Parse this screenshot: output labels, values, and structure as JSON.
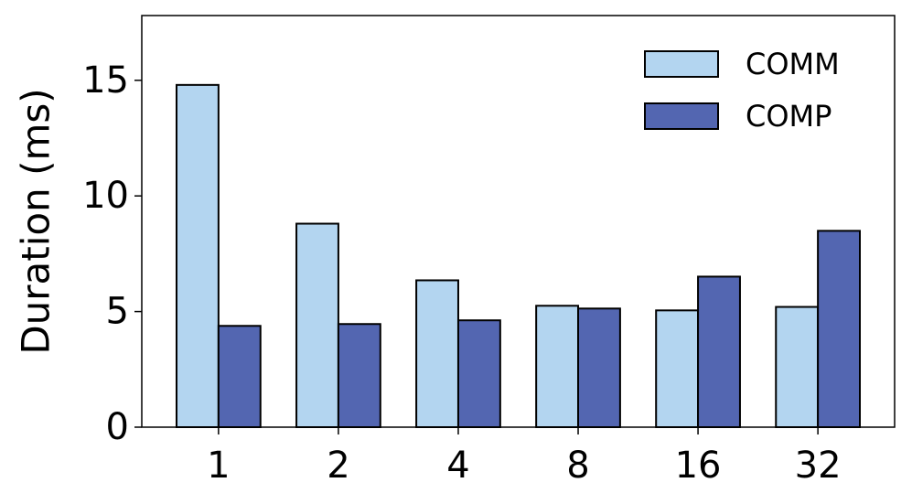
{
  "chart_data": {
    "type": "bar",
    "ylabel": "Duration (ms)",
    "categories": [
      "1",
      "2",
      "4",
      "8",
      "16",
      "32"
    ],
    "series": [
      {
        "name": "COMM",
        "color": "#b3d5f0",
        "values": [
          14.8,
          8.8,
          6.35,
          5.25,
          5.05,
          5.2
        ]
      },
      {
        "name": "COMP",
        "color": "#5366b1",
        "values": [
          4.38,
          4.46,
          4.62,
          5.13,
          6.51,
          8.49
        ]
      }
    ],
    "ylim": [
      0,
      17.8
    ],
    "yticks": [
      0,
      5,
      10,
      15
    ],
    "legend": "upper right"
  }
}
